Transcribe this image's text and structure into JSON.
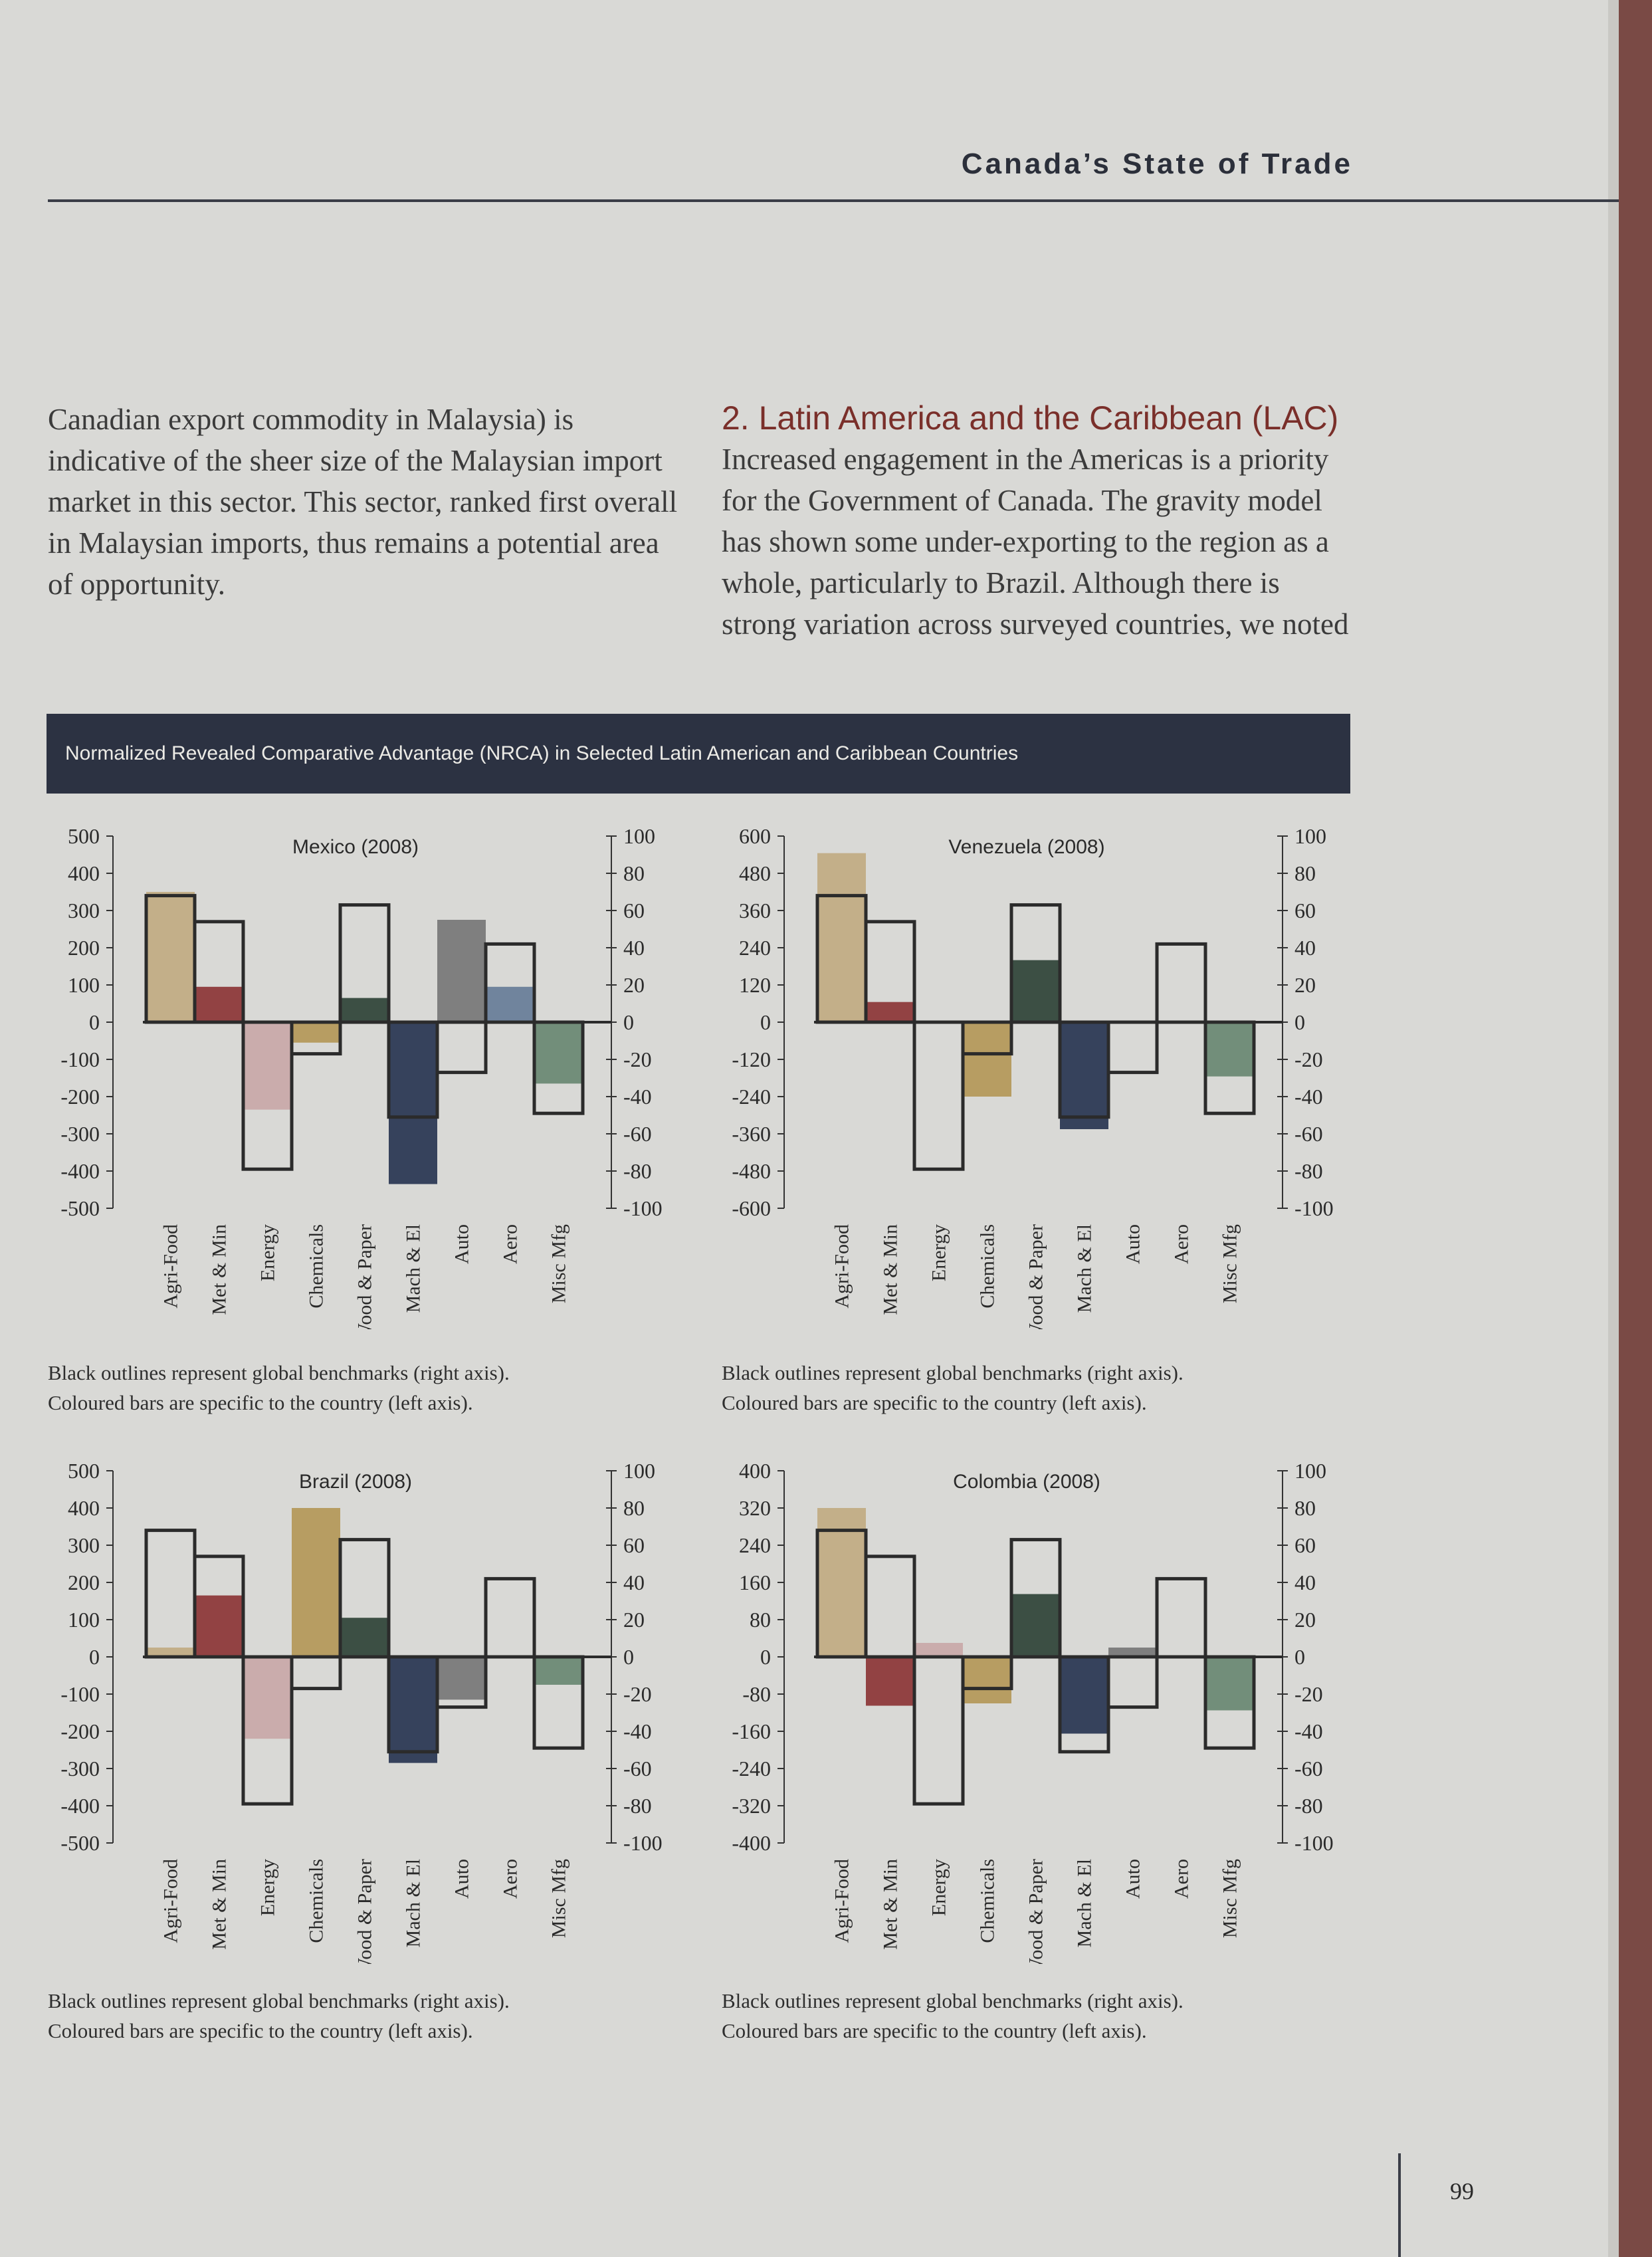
{
  "header": {
    "title": "Canada’s State of Trade"
  },
  "left_paragraph": "Canadian export commodity in Malaysia) is indicative of the sheer size of the Malaysian import market in this sector. This sector, ranked first overall in Malaysian imports, thus remains a potential area of opportunity.",
  "section": {
    "heading": "2. Latin America and the Caribbean (LAC)",
    "paragraph": "Increased engagement in the Americas is a priority for the Government of Canada. The gravity model has shown some under-exporting to the region as a whole, particularly to Brazil. Although there is strong variation across surveyed countries, we noted"
  },
  "figure": {
    "title": "Normalized Revealed Comparative Advantage (NRCA) in Selected Latin American and Caribbean Countries"
  },
  "captions": {
    "line1": "Black outlines represent global benchmarks (right axis).",
    "line2": "Coloured bars are specific to the country (left axis)."
  },
  "page_number": "99",
  "chart_data": [
    {
      "type": "bar",
      "title": "Mexico (2008)",
      "categories": [
        "Agri-Food",
        "Met & Min",
        "Energy",
        "Chemicals",
        "Wood & Paper",
        "Mach & El",
        "Auto",
        "Aero",
        "Misc Mfg"
      ],
      "left_ylim": [
        -500,
        500
      ],
      "left_ticks": [
        "500",
        "400",
        "300",
        "200",
        "100",
        "0",
        "-100",
        "-200",
        "-300",
        "-400",
        "-500"
      ],
      "right_ylim": [
        -100,
        100
      ],
      "right_ticks": [
        "100",
        "80",
        "60",
        "40",
        "20",
        "0",
        "-20",
        "-40",
        "-60",
        "-80",
        "-100"
      ],
      "series": [
        {
          "name": "Coloured bars are specific to the country (left axis).",
          "axis": "left",
          "values": [
            350,
            95,
            -235,
            -55,
            65,
            -435,
            275,
            95,
            -165
          ]
        },
        {
          "name": "Black outlines represent global benchmarks (right axis).",
          "axis": "right",
          "values": [
            68,
            54,
            -79,
            -17,
            63,
            -51,
            -27,
            42,
            -49
          ]
        }
      ],
      "colors": [
        "#c2ad85",
        "#8e3a3b",
        "#c9aaaa",
        "#b59a5c",
        "#34483c",
        "#2d3a55",
        "#7a7a7a",
        "#6a7f9a",
        "#6d8a75"
      ]
    },
    {
      "type": "bar",
      "title": "Venezuela (2008)",
      "categories": [
        "Agri-Food",
        "Met & Min",
        "Energy",
        "Chemicals",
        "Wood & Paper",
        "Mach & El",
        "Auto",
        "Aero",
        "Misc Mfg"
      ],
      "left_ylim": [
        -600,
        600
      ],
      "left_ticks": [
        "600",
        "480",
        "360",
        "240",
        "120",
        "0",
        "-120",
        "-240",
        "-360",
        "-480",
        "-600"
      ],
      "right_ylim": [
        -100,
        100
      ],
      "right_ticks": [
        "100",
        "80",
        "60",
        "40",
        "20",
        "0",
        "-20",
        "-40",
        "-60",
        "-80",
        "-100"
      ],
      "series": [
        {
          "name": "Coloured bars are specific to the country (left axis).",
          "axis": "left",
          "values": [
            545,
            65,
            0,
            -240,
            200,
            -345,
            0,
            0,
            -175
          ]
        },
        {
          "name": "Black outlines represent global benchmarks (right axis).",
          "axis": "right",
          "values": [
            68,
            54,
            -79,
            -17,
            63,
            -51,
            -27,
            42,
            -49
          ]
        }
      ],
      "colors": [
        "#c2ad85",
        "#8e3a3b",
        "#c9aaaa",
        "#b59a5c",
        "#34483c",
        "#2d3a55",
        "#7a7a7a",
        "#6a7f9a",
        "#6d8a75"
      ]
    },
    {
      "type": "bar",
      "title": "Brazil (2008)",
      "categories": [
        "Agri-Food",
        "Met & Min",
        "Energy",
        "Chemicals",
        "Wood & Paper",
        "Mach & El",
        "Auto",
        "Aero",
        "Misc Mfg"
      ],
      "left_ylim": [
        -500,
        500
      ],
      "left_ticks": [
        "500",
        "400",
        "300",
        "200",
        "100",
        "0",
        "-100",
        "-200",
        "-300",
        "-400",
        "-500"
      ],
      "right_ylim": [
        -100,
        100
      ],
      "right_ticks": [
        "100",
        "80",
        "60",
        "40",
        "20",
        "0",
        "-20",
        "-40",
        "-60",
        "-80",
        "-100"
      ],
      "series": [
        {
          "name": "Coloured bars are specific to the country (left axis).",
          "axis": "left",
          "values": [
            25,
            165,
            -220,
            400,
            105,
            -285,
            -115,
            0,
            -75
          ]
        },
        {
          "name": "Black outlines represent global benchmarks (right axis).",
          "axis": "right",
          "values": [
            68,
            54,
            -79,
            -17,
            63,
            -51,
            -27,
            42,
            -49
          ]
        }
      ],
      "colors": [
        "#c2ad85",
        "#8e3a3b",
        "#c9aaaa",
        "#b59a5c",
        "#34483c",
        "#2d3a55",
        "#7a7a7a",
        "#6a7f9a",
        "#6d8a75"
      ]
    },
    {
      "type": "bar",
      "title": "Colombia (2008)",
      "categories": [
        "Agri-Food",
        "Met & Min",
        "Energy",
        "Chemicals",
        "Wood & Paper",
        "Mach & El",
        "Auto",
        "Aero",
        "Misc Mfg"
      ],
      "left_ylim": [
        -400,
        400
      ],
      "left_ticks": [
        "400",
        "320",
        "240",
        "160",
        "80",
        "0",
        "-80",
        "-160",
        "-240",
        "-320",
        "-400"
      ],
      "right_ylim": [
        -100,
        100
      ],
      "right_ticks": [
        "100",
        "80",
        "60",
        "40",
        "20",
        "0",
        "-20",
        "-40",
        "-60",
        "-80",
        "-100"
      ],
      "series": [
        {
          "name": "Coloured bars are specific to the country (left axis).",
          "axis": "left",
          "values": [
            320,
            -105,
            30,
            -100,
            135,
            -165,
            20,
            0,
            -115
          ]
        },
        {
          "name": "Black outlines represent global benchmarks (right axis).",
          "axis": "right",
          "values": [
            68,
            54,
            -79,
            -17,
            63,
            -51,
            -27,
            42,
            -49
          ]
        }
      ],
      "colors": [
        "#c2ad85",
        "#8e3a3b",
        "#c9aaaa",
        "#b59a5c",
        "#34483c",
        "#2d3a55",
        "#7a7a7a",
        "#6a7f9a",
        "#6d8a75"
      ]
    }
  ]
}
